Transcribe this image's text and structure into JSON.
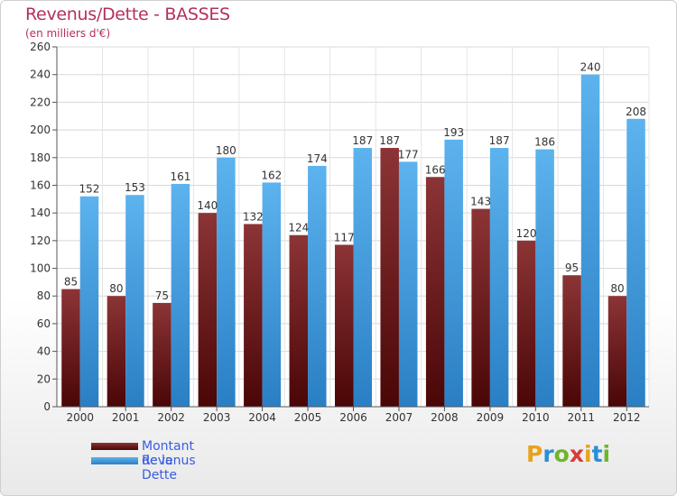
{
  "header": {
    "title": "Revenus/Dette - BASSES",
    "subtitle": "(en milliers d'€)"
  },
  "legend": {
    "items": [
      {
        "label": "Montant de la Dette",
        "color": "#6e0d0d"
      },
      {
        "label": "Revenus",
        "color": "#3f9ce0"
      }
    ]
  },
  "brand": {
    "letters": [
      "P",
      "r",
      "o",
      "x",
      "i",
      "t",
      "i"
    ],
    "colors": [
      "#e8a21c",
      "#2b8fd6",
      "#6fb52c",
      "#d93b3b",
      "#e8a21c",
      "#2b8fd6",
      "#6fb52c"
    ]
  },
  "chart_data": {
    "type": "bar",
    "title": "Revenus/Dette - BASSES",
    "subtitle": "(en milliers d'€)",
    "categories": [
      "2000",
      "2001",
      "2002",
      "2003",
      "2004",
      "2005",
      "2006",
      "2007",
      "2008",
      "2009",
      "2010",
      "2011",
      "2012"
    ],
    "series": [
      {
        "name": "Montant de la Dette",
        "color": "#7a1f22",
        "values": [
          85,
          80,
          75,
          140,
          132,
          124,
          117,
          187,
          166,
          143,
          120,
          95,
          80
        ]
      },
      {
        "name": "Revenus",
        "color": "#4aa3e6",
        "values": [
          152,
          153,
          161,
          180,
          162,
          174,
          187,
          177,
          193,
          187,
          186,
          240,
          208
        ]
      }
    ],
    "ylim": [
      0,
      260
    ],
    "yticks": [
      0,
      20,
      40,
      60,
      80,
      100,
      120,
      140,
      160,
      180,
      200,
      220,
      240,
      260
    ],
    "grid": true,
    "legend_position": "bottom-left"
  }
}
